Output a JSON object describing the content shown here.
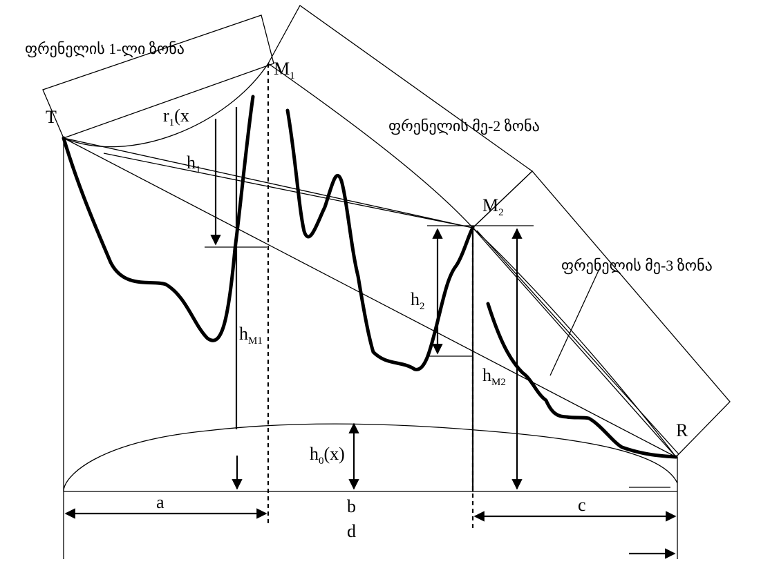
{
  "labels": {
    "zone1": "ფრენელის 1-ლი ზონა",
    "zone2": "ფრენელის მე-2 ზონა",
    "zone3": "ფრენელის მე-3 ზონა",
    "T": "T",
    "M1": "M",
    "M1_sub": "1",
    "M2": "M",
    "M2_sub": "2",
    "R": "R",
    "r1": "r",
    "r1_sub": "1",
    "r1_tail": "(x",
    "h1": "h",
    "h1_sub": "1",
    "h2": "h",
    "h2_sub": "2",
    "hM1": "h",
    "hM1_sub": "M1",
    "hM2": "h",
    "hM2_sub": "M2",
    "h0": "h",
    "h0_sub": "0",
    "h0_tail": "(x)",
    "a": "a",
    "b": "b",
    "c": "c",
    "d": "d"
  },
  "colors": {
    "ink": "#000000",
    "background": "#ffffff"
  }
}
